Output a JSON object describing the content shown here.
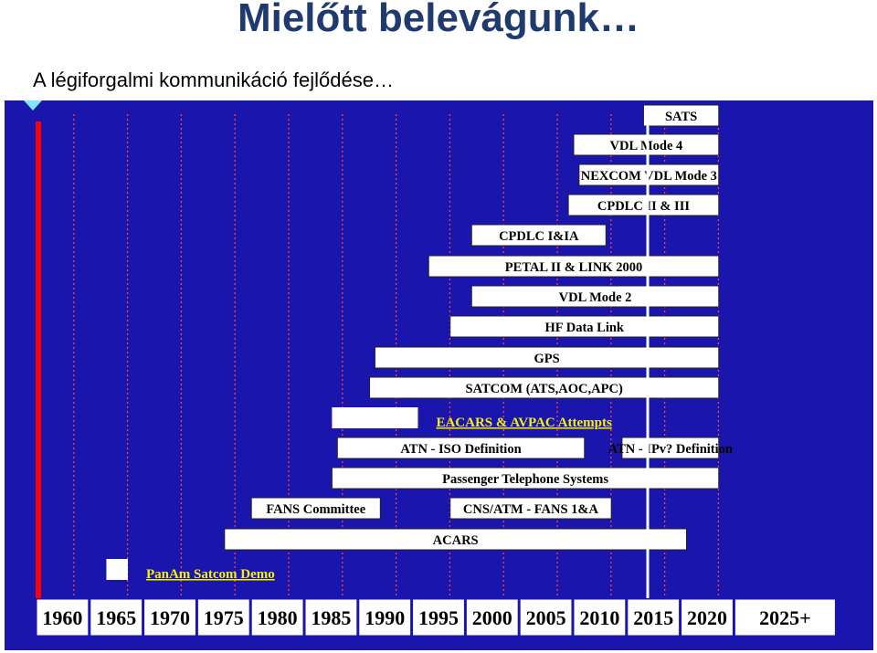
{
  "title": "Mielőtt belevágunk…",
  "subtitle": "A légiforgalmi kommunikáció fejlődése…",
  "colors": {
    "background": "#1a16ad",
    "bar": "#ffffff",
    "grid": "#ff4040",
    "timeline_marker": "#ffffff",
    "axis_base": "#ff0000",
    "external_label": "#f5f00a"
  },
  "chart_data": {
    "type": "timeline",
    "x_ticks": [
      "1960",
      "1965",
      "1970",
      "1975",
      "1980",
      "1985",
      "1990",
      "1995",
      "2000",
      "2005",
      "2010",
      "2015",
      "2020",
      "2025+"
    ],
    "xlim": [
      1960,
      2025
    ],
    "current_year_marker": 2016,
    "grid": "dotted-vertical",
    "bars": [
      {
        "label": "SATS",
        "start": 2016.5,
        "end": 2023.5,
        "label_inside": true
      },
      {
        "label": "VDL Mode 4",
        "start": 2010,
        "end": 2023.5,
        "label_inside": true
      },
      {
        "label": "NEXCOM VDL Mode 3",
        "start": 2010.5,
        "end": 2023.5,
        "label_inside": true
      },
      {
        "label": "CPDLC II & III",
        "start": 2009.5,
        "end": 2023.5,
        "label_inside": true
      },
      {
        "label": "CPDLC I&IA",
        "start": 2000.5,
        "end": 2013,
        "label_inside": true
      },
      {
        "label": "PETAL II & LINK 2000",
        "start": 1996.5,
        "end": 2023.5,
        "label_inside": true
      },
      {
        "label": "VDL Mode 2",
        "start": 2000.5,
        "end": 2023.5,
        "label_inside": true
      },
      {
        "label": "HF Data Link",
        "start": 1998.5,
        "end": 2023.5,
        "label_inside": true
      },
      {
        "label": "GPS",
        "start": 1991.5,
        "end": 2023.5,
        "label_inside": true
      },
      {
        "label": "SATCOM (ATS,AOC,APC)",
        "start": 1991,
        "end": 2023.5,
        "label_inside": true
      },
      {
        "label": "EACARS & AVPAC Attempts",
        "start": 1987.5,
        "end": 1995.5,
        "label_inside": false
      },
      {
        "label": "ATN - ISO Definition",
        "start": 1988,
        "end": 2011,
        "label_inside": true
      },
      {
        "label": "ATN - IPv? Definition",
        "start": 2014.5,
        "end": 2023.5,
        "label_inside": true
      },
      {
        "label": "Passenger Telephone Systems",
        "start": 1987.5,
        "end": 2023.5,
        "label_inside": true
      },
      {
        "label": "FANS Committee",
        "start": 1980,
        "end": 1992,
        "label_inside": true
      },
      {
        "label": "CNS/ATM - FANS 1&A",
        "start": 1998.5,
        "end": 2013.5,
        "label_inside": true
      },
      {
        "label": "ACARS",
        "start": 1977.5,
        "end": 2020.5,
        "label_inside": true
      },
      {
        "label": "PanAm Satcom Demo",
        "start": 1966.5,
        "end": 1968.5,
        "label_inside": false
      }
    ]
  }
}
